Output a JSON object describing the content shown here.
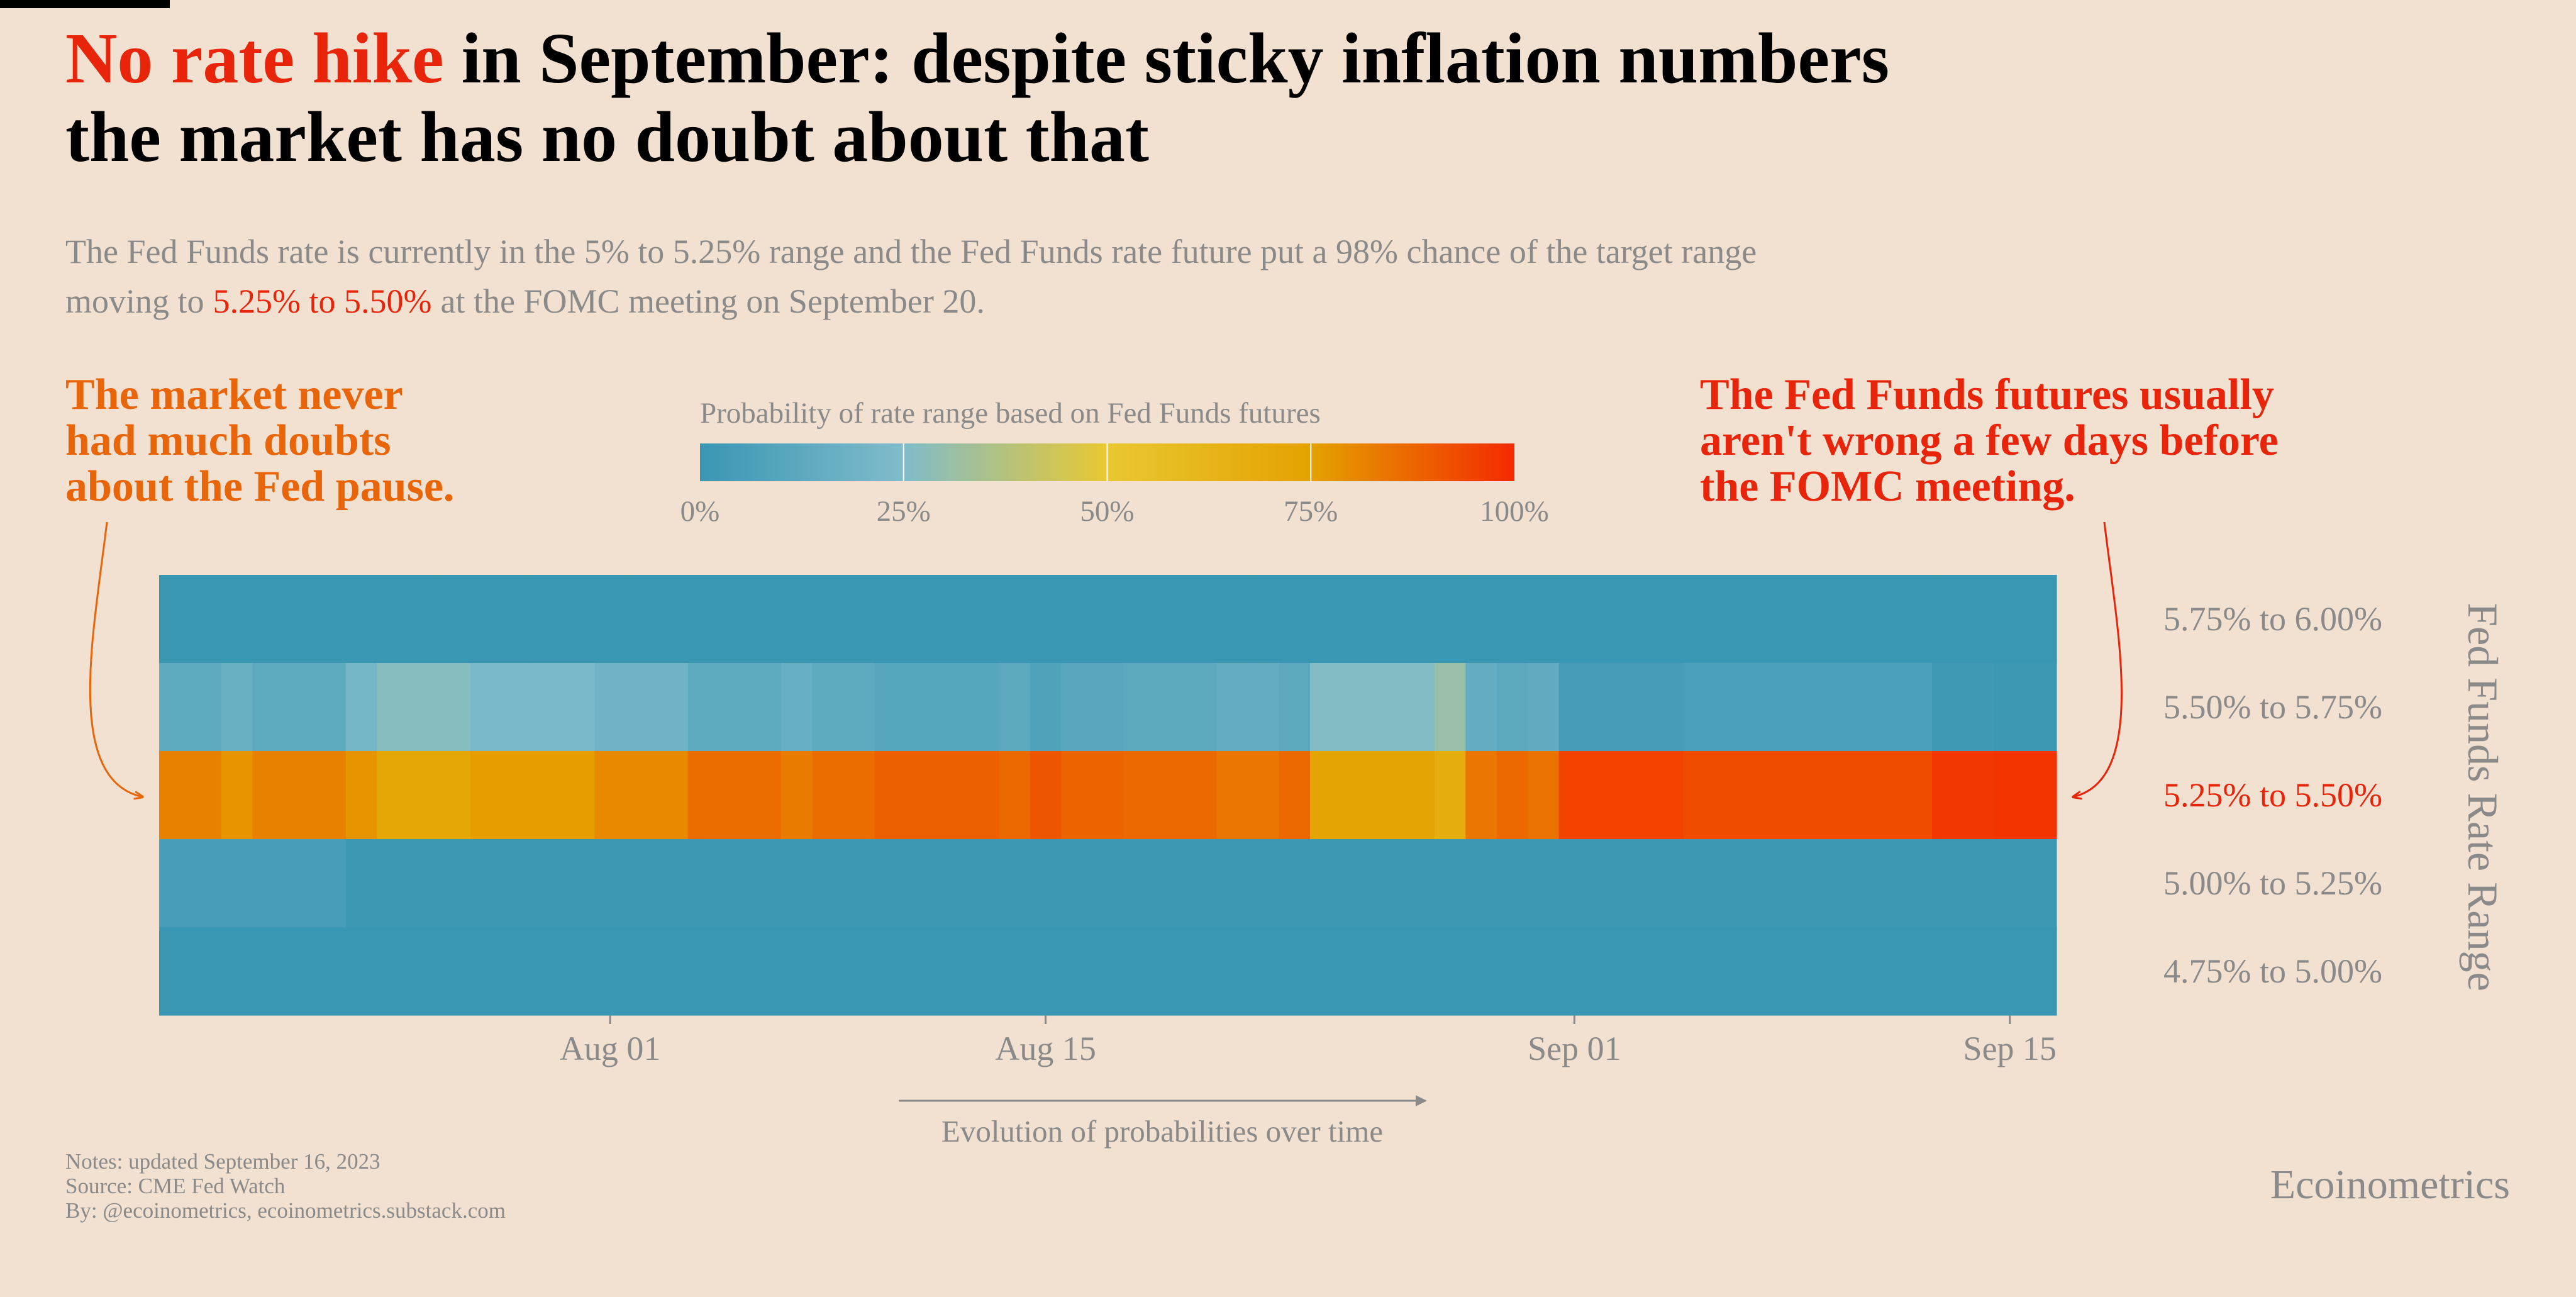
{
  "chart_data": {
    "type": "heatmap",
    "title": [
      "No rate hike",
      "in September: despite sticky inflation numbers",
      "the market has no doubt about that"
    ],
    "title_colors": [
      "#e8250a",
      "#000000"
    ],
    "subtitle": [
      "The Fed Funds rate is currently in the 5% to 5.25% range and the Fed Funds rate future put a 98% chance of the target range",
      "moving to",
      "5.25% to 5.50%",
      "at the FOMC meeting on September 20."
    ],
    "annotations": [
      {
        "lines": [
          "The market never",
          "had much doubts",
          "about the Fed pause."
        ],
        "color": "#e8650a"
      },
      {
        "lines": [
          "The Fed Funds futures usually",
          "aren't wrong a few days before",
          "the FOMC meeting."
        ],
        "color": "#e8250a"
      }
    ],
    "colorbar_title": "Probability of rate range based on Fed Funds futures",
    "colorbar_lim": [
      0,
      100
    ],
    "colorbar_ticks": [
      {
        "value": 0,
        "label": "0%"
      },
      {
        "value": 25,
        "label": "25%"
      },
      {
        "value": 50,
        "label": "50%"
      },
      {
        "value": 75,
        "label": "75%"
      },
      {
        "value": 100,
        "label": "100%"
      }
    ],
    "colorscale": [
      {
        "value": 0,
        "color": "#3a97b3"
      },
      {
        "value": 25,
        "color": "#80bccb"
      },
      {
        "value": 50,
        "color": "#e9c832"
      },
      {
        "value": 75,
        "color": "#e4a200"
      },
      {
        "value": 100,
        "color": "#f42a00"
      }
    ],
    "x": [
      null,
      null,
      null,
      null,
      null,
      null,
      null,
      null,
      null,
      null,
      null,
      null,
      null,
      null,
      "Aug 01",
      null,
      null,
      null,
      null,
      null,
      null,
      null,
      null,
      null,
      null,
      null,
      null,
      null,
      "Aug 15",
      null,
      null,
      null,
      null,
      null,
      null,
      null,
      null,
      null,
      null,
      null,
      null,
      null,
      null,
      null,
      null,
      "Sep 01",
      null,
      null,
      null,
      null,
      null,
      null,
      null,
      null,
      null,
      null,
      null,
      null,
      null,
      "Sep 15",
      null
    ],
    "x_label": "Evolution of probabilities over time",
    "y_label": "Fed Funds Rate Range",
    "rows": [
      {
        "name": "5.75% to 6.00%",
        "label_color": "#8a8a8a",
        "values": [
          0,
          0,
          0,
          0,
          0,
          0,
          0,
          0,
          0,
          0,
          0,
          0,
          0,
          0,
          0,
          0,
          0,
          0,
          0,
          0,
          0,
          0,
          0,
          0,
          0,
          0,
          0,
          0,
          0,
          0,
          0,
          0,
          0,
          0,
          0,
          0,
          0,
          0,
          0,
          0,
          0,
          0,
          0,
          0,
          0,
          0,
          0,
          0,
          0,
          0,
          0,
          0,
          0,
          0,
          0,
          0,
          0,
          0,
          0,
          0,
          0
        ]
      },
      {
        "name": "5.50% to 5.75%",
        "label_color": "#8a8a8a",
        "values": [
          13,
          13,
          17,
          13,
          13,
          13,
          21,
          27,
          27,
          27,
          23,
          23,
          23,
          23,
          19,
          19,
          19,
          13,
          13,
          13,
          16,
          13,
          13,
          10,
          10,
          10,
          10,
          12,
          8,
          11,
          11,
          12,
          12,
          12,
          15,
          15,
          12,
          26,
          26,
          26,
          26,
          31,
          15,
          12,
          14,
          4,
          4,
          4,
          4,
          6,
          6,
          6,
          6,
          6,
          6,
          6,
          6,
          2,
          2,
          1,
          1
        ]
      },
      {
        "name": "5.25% to 5.50%",
        "label_color": "#e8250a",
        "values": [
          82,
          82,
          78,
          82,
          82,
          82,
          78,
          72,
          72,
          72,
          76,
          76,
          76,
          76,
          80,
          80,
          80,
          86,
          86,
          86,
          83,
          86,
          86,
          89,
          89,
          89,
          89,
          87,
          91,
          88,
          88,
          87,
          87,
          87,
          84,
          84,
          87,
          73,
          73,
          73,
          73,
          68,
          84,
          87,
          85,
          95,
          95,
          95,
          95,
          93,
          93,
          93,
          93,
          93,
          93,
          93,
          93,
          97,
          97,
          98,
          98
        ]
      },
      {
        "name": "5.00% to 5.25%",
        "label_color": "#8a8a8a",
        "values": [
          5,
          5,
          5,
          5,
          5,
          5,
          1,
          1,
          1,
          1,
          1,
          1,
          1,
          1,
          1,
          1,
          1,
          1,
          1,
          1,
          1,
          1,
          1,
          1,
          1,
          1,
          1,
          1,
          1,
          1,
          1,
          1,
          1,
          1,
          1,
          1,
          1,
          1,
          1,
          1,
          1,
          1,
          1,
          1,
          1,
          1,
          1,
          1,
          1,
          1,
          1,
          1,
          1,
          1,
          1,
          1,
          1,
          1,
          1,
          1,
          1
        ]
      },
      {
        "name": "4.75% to 5.00%",
        "label_color": "#8a8a8a",
        "values": [
          0,
          0,
          0,
          0,
          0,
          0,
          0,
          0,
          0,
          0,
          0,
          0,
          0,
          0,
          0,
          0,
          0,
          0,
          0,
          0,
          0,
          0,
          0,
          0,
          0,
          0,
          0,
          0,
          0,
          0,
          0,
          0,
          0,
          0,
          0,
          0,
          0,
          0,
          0,
          0,
          0,
          0,
          0,
          0,
          0,
          0,
          0,
          0,
          0,
          0,
          0,
          0,
          0,
          0,
          0,
          0,
          0,
          0,
          0,
          0,
          0
        ]
      }
    ],
    "notes": [
      "Notes: updated September 16, 2023",
      "Source: CME Fed Watch",
      "By: @ecoinometrics, ecoinometrics.substack.com"
    ],
    "brand": "Ecoinometrics"
  }
}
